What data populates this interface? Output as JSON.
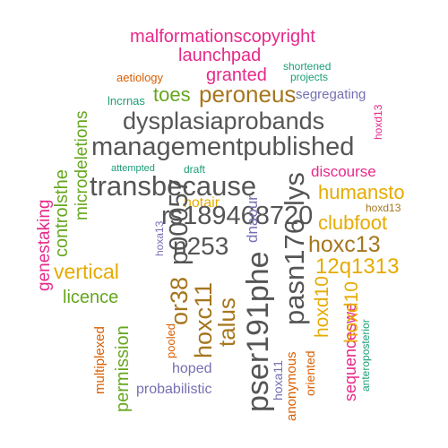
{
  "words": [
    {
      "text": "malformationscopyright",
      "color": "#e7298a"
    },
    {
      "text": "launchpad",
      "color": "#e7298a"
    },
    {
      "text": "shortened",
      "color": "#1b9e77"
    },
    {
      "text": "projects",
      "color": "#1b9e77"
    },
    {
      "text": "aetiology",
      "color": "#d95f02"
    },
    {
      "text": "granted",
      "color": "#e7298a"
    },
    {
      "text": "hoxd13",
      "color": "#e7298a"
    },
    {
      "text": "lncrnas",
      "color": "#1b9e77"
    },
    {
      "text": "toes",
      "color": "#66a61e"
    },
    {
      "text": "peroneus",
      "color": "#a6761d"
    },
    {
      "text": "segregating",
      "color": "#7570b3"
    },
    {
      "text": "dysplasiaprobands",
      "color": "#555555"
    },
    {
      "text": "managementpublished",
      "color": "#555555"
    },
    {
      "text": "microdeletions",
      "color": "#66a61e"
    },
    {
      "text": "attempted",
      "color": "#1b9e77"
    },
    {
      "text": "draft",
      "color": "#1b9e77"
    },
    {
      "text": "discourse",
      "color": "#e7298a"
    },
    {
      "text": "transbecause",
      "color": "#555555"
    },
    {
      "text": "lys",
      "color": "#555555"
    },
    {
      "text": "humansto",
      "color": "#e6ab02"
    },
    {
      "text": "controlsthe",
      "color": "#66a61e"
    },
    {
      "text": "genestaking",
      "color": "#e7298a"
    },
    {
      "text": "hotair",
      "color": "#e6ab02"
    },
    {
      "text": "rs189468720",
      "color": "#555555"
    },
    {
      "text": "hoxa13",
      "color": "#7570b3"
    },
    {
      "text": "p00057",
      "color": "#555555"
    },
    {
      "text": "dnaour",
      "color": "#7570b3"
    },
    {
      "text": "hoxd13",
      "color": "#a6761d"
    },
    {
      "text": "clubfoot",
      "color": "#e6ab02"
    },
    {
      "text": "n253",
      "color": "#555555"
    },
    {
      "text": "hoxc13",
      "color": "#a6761d"
    },
    {
      "text": "pasn176",
      "color": "#555555"
    },
    {
      "text": "12q1313",
      "color": "#e6ab02"
    },
    {
      "text": "vertical",
      "color": "#e6ab02"
    },
    {
      "text": "or38",
      "color": "#a6761d"
    },
    {
      "text": "pser191phe",
      "color": "#555555"
    },
    {
      "text": "licence",
      "color": "#66a61e"
    },
    {
      "text": "hoxc11",
      "color": "#a6761d"
    },
    {
      "text": "talus",
      "color": "#a6761d"
    },
    {
      "text": "hoxd10",
      "color": "#e6ab02"
    },
    {
      "text": "sequenceswe",
      "color": "#e7298a"
    },
    {
      "text": "multiplexed",
      "color": "#d95f02"
    },
    {
      "text": "permission",
      "color": "#66a61e"
    },
    {
      "text": "pooled",
      "color": "#d95f02"
    },
    {
      "text": "hoped",
      "color": "#7570b3"
    },
    {
      "text": "probabilistic",
      "color": "#7570b3"
    },
    {
      "text": "hoxa11",
      "color": "#7570b3"
    },
    {
      "text": "anonymous",
      "color": "#d95f02"
    },
    {
      "text": "oriented",
      "color": "#d95f02"
    },
    {
      "text": "hoxd10",
      "color": "#e6ab02"
    },
    {
      "text": "anteroposterior",
      "color": "#1b9e77"
    }
  ]
}
